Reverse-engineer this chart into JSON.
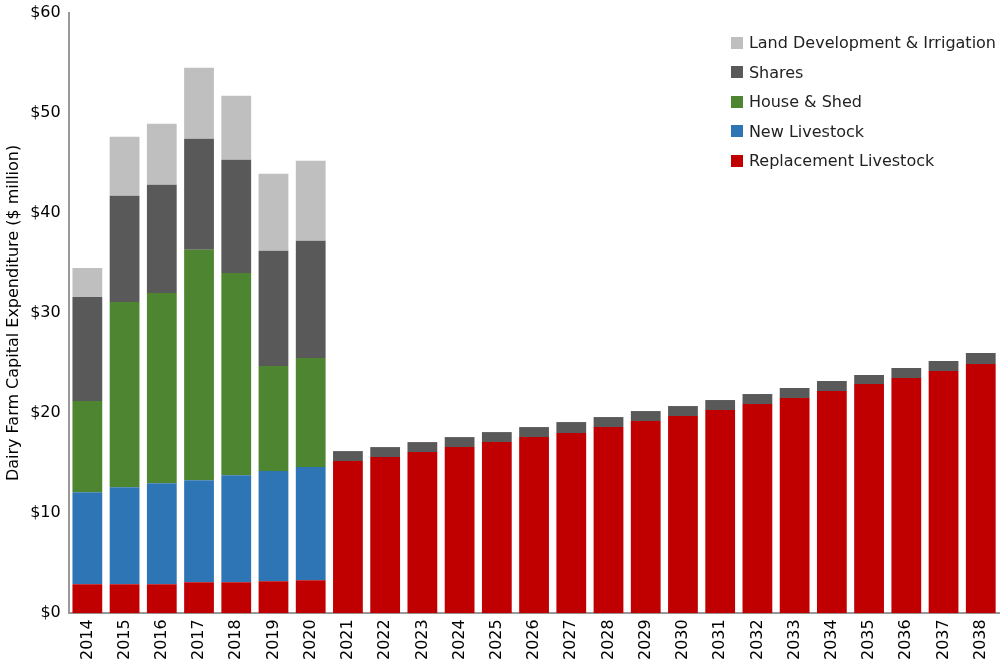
{
  "chart_data": {
    "type": "bar",
    "stacked": true,
    "ylabel": "Dairy Farm Capital Expenditure ($ million)",
    "categories": [
      "2014",
      "2015",
      "2016",
      "2017",
      "2018",
      "2019",
      "2020",
      "2021",
      "2022",
      "2023",
      "2024",
      "2025",
      "2026",
      "2027",
      "2028",
      "2029",
      "2030",
      "2031",
      "2032",
      "2033",
      "2034",
      "2035",
      "2036",
      "2037",
      "2038"
    ],
    "series": [
      {
        "name": "Replacement Livestock",
        "color": "#c00000",
        "values": [
          2.9,
          2.9,
          2.9,
          3.1,
          3.1,
          3.2,
          3.3,
          15.2,
          15.6,
          16.1,
          16.6,
          17.1,
          17.6,
          18.0,
          18.6,
          19.2,
          19.7,
          20.3,
          20.9,
          21.5,
          22.2,
          22.9,
          23.5,
          24.2,
          24.9
        ]
      },
      {
        "name": "New Livestock",
        "color": "#2e75b6",
        "values": [
          9.2,
          9.7,
          10.1,
          10.2,
          10.7,
          11.0,
          11.3,
          null,
          null,
          null,
          null,
          null,
          null,
          null,
          null,
          null,
          null,
          null,
          null,
          null,
          null,
          null,
          null,
          null,
          null
        ]
      },
      {
        "name": "House & Shed",
        "color": "#4e8530",
        "values": [
          9.1,
          18.5,
          19.0,
          23.0,
          20.2,
          10.5,
          10.9,
          null,
          null,
          null,
          null,
          null,
          null,
          null,
          null,
          null,
          null,
          null,
          null,
          null,
          null,
          null,
          null,
          null,
          null
        ]
      },
      {
        "name": "Shares",
        "color": "#595959",
        "values": [
          10.4,
          10.6,
          10.8,
          11.1,
          11.3,
          11.5,
          11.7,
          1.0,
          1.0,
          1.0,
          1.0,
          1.0,
          1.0,
          1.1,
          1.0,
          1.0,
          1.0,
          1.0,
          1.0,
          1.0,
          1.0,
          0.9,
          1.0,
          1.0,
          1.1
        ]
      },
      {
        "name": "Land Development & Irrigation",
        "color": "#bfbfbf",
        "values": [
          2.9,
          5.9,
          6.1,
          7.1,
          6.4,
          7.7,
          8.0,
          null,
          null,
          null,
          null,
          null,
          null,
          null,
          null,
          null,
          null,
          null,
          null,
          null,
          null,
          null,
          null,
          null,
          null
        ]
      }
    ],
    "ylim": [
      0,
      60
    ],
    "yticks": [
      {
        "value": 0,
        "label": "$0"
      },
      {
        "value": 10,
        "label": "$10"
      },
      {
        "value": 20,
        "label": "$20"
      },
      {
        "value": 30,
        "label": "$30"
      },
      {
        "value": 40,
        "label": "$40"
      },
      {
        "value": 50,
        "label": "$50"
      },
      {
        "value": 60,
        "label": "$60"
      }
    ],
    "grid": false,
    "legend": "top right"
  }
}
